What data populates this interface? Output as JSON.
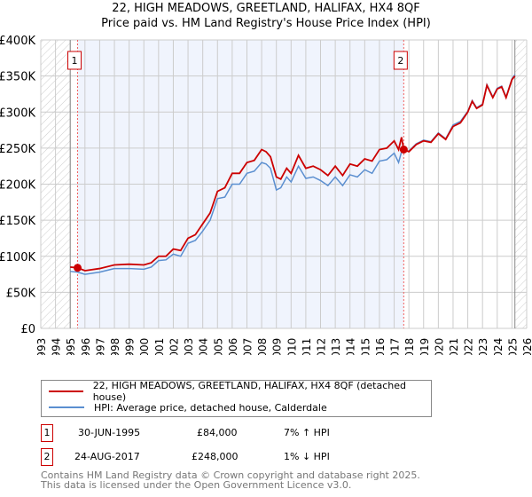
{
  "title": "22, HIGH MEADOWS, GREETLAND, HALIFAX, HX4 8QF",
  "subtitle": "Price paid vs. HM Land Registry's House Price Index (HPI)",
  "chart_data": {
    "type": "line",
    "title": "22, HIGH MEADOWS, GREETLAND, HALIFAX, HX4 8QF",
    "subtitle": "Price paid vs. HM Land Registry's House Price Index (HPI)",
    "xlim": [
      1993,
      2026
    ],
    "ylim": [
      0,
      400000
    ],
    "grid": true,
    "x_ticks": [
      "1993",
      "1994",
      "1995",
      "1996",
      "1997",
      "1998",
      "1999",
      "2000",
      "2001",
      "2002",
      "2003",
      "2004",
      "2005",
      "2006",
      "2007",
      "2008",
      "2009",
      "2010",
      "2011",
      "2012",
      "2013",
      "2014",
      "2015",
      "2016",
      "2017",
      "2018",
      "2019",
      "2020",
      "2021",
      "2022",
      "2023",
      "2024",
      "2025",
      "2026"
    ],
    "y_ticks": [
      {
        "v": 0,
        "label": "£0"
      },
      {
        "v": 50000,
        "label": "£50K"
      },
      {
        "v": 100000,
        "label": "£100K"
      },
      {
        "v": 150000,
        "label": "£150K"
      },
      {
        "v": 200000,
        "label": "£200K"
      },
      {
        "v": 250000,
        "label": "£250K"
      },
      {
        "v": 300000,
        "label": "£300K"
      },
      {
        "v": 350000,
        "label": "£350K"
      },
      {
        "v": 400000,
        "label": "£400K"
      }
    ],
    "x": [
      1995.0,
      1995.5,
      1996,
      1997,
      1998,
      1999,
      2000,
      2000.5,
      2001,
      2001.5,
      2002,
      2002.5,
      2003,
      2003.5,
      2004,
      2004.5,
      2005,
      2005.5,
      2006,
      2006.5,
      2007,
      2007.5,
      2008,
      2008.3,
      2008.6,
      2009,
      2009.3,
      2009.7,
      2010,
      2010.5,
      2011,
      2011.5,
      2012,
      2012.5,
      2013,
      2013.5,
      2014,
      2014.5,
      2015,
      2015.5,
      2016,
      2016.5,
      2017,
      2017.3,
      2017.5,
      2017.65,
      2018,
      2018.5,
      2019,
      2019.5,
      2020,
      2020.5,
      2021,
      2021.5,
      2022,
      2022.3,
      2022.6,
      2023,
      2023.3,
      2023.7,
      2024,
      2024.3,
      2024.6,
      2025,
      2025.2
    ],
    "series": [
      {
        "name": "22, HIGH MEADOWS, GREETLAND, HALIFAX, HX4 8QF (detached house)",
        "color": "#cc0000",
        "values": [
          85000,
          84000,
          80000,
          83000,
          88000,
          89000,
          88000,
          91000,
          100000,
          100000,
          110000,
          108000,
          125000,
          130000,
          145000,
          160000,
          190000,
          195000,
          215000,
          215000,
          230000,
          233000,
          248000,
          245000,
          238000,
          210000,
          207000,
          222000,
          215000,
          240000,
          222000,
          225000,
          220000,
          212000,
          225000,
          212000,
          228000,
          225000,
          235000,
          232000,
          248000,
          250000,
          260000,
          248000,
          265000,
          248000,
          245000,
          255000,
          260000,
          258000,
          270000,
          262000,
          280000,
          285000,
          300000,
          315000,
          305000,
          310000,
          337000,
          320000,
          332000,
          335000,
          320000,
          345000,
          350000
        ]
      },
      {
        "name": "HPI: Average price, detached house, Calderdale",
        "color": "#5b8fd0",
        "values": [
          79000,
          78000,
          75000,
          78000,
          83000,
          83000,
          82000,
          85000,
          94000,
          95000,
          103000,
          100000,
          118000,
          122000,
          135000,
          150000,
          180000,
          182000,
          200000,
          200000,
          215000,
          218000,
          230000,
          228000,
          222000,
          192000,
          195000,
          210000,
          203000,
          225000,
          208000,
          210000,
          205000,
          198000,
          210000,
          198000,
          213000,
          210000,
          220000,
          215000,
          232000,
          234000,
          243000,
          230000,
          245000,
          246000,
          246000,
          256000,
          261000,
          259000,
          271000,
          263000,
          282000,
          287000,
          301000,
          316000,
          306000,
          311000,
          338000,
          321000,
          333000,
          336000,
          321000,
          346000,
          352000
        ]
      }
    ],
    "sales": [
      {
        "id": "1",
        "x": 1995.5,
        "value": 84000
      },
      {
        "id": "2",
        "x": 2017.65,
        "value": 248000
      }
    ],
    "data_end": 2025.2,
    "legend_placement": "bottom"
  },
  "legend": [
    {
      "label": "22, HIGH MEADOWS, GREETLAND, HALIFAX, HX4 8QF (detached house)",
      "color": "#cc0000"
    },
    {
      "label": "HPI: Average price, detached house, Calderdale",
      "color": "#5b8fd0"
    }
  ],
  "transactions": [
    {
      "num": "1",
      "date": "30-JUN-1995",
      "price": "£84,000",
      "hpi": "7% ↑ HPI"
    },
    {
      "num": "2",
      "date": "24-AUG-2017",
      "price": "£248,000",
      "hpi": "1% ↓ HPI"
    }
  ],
  "footer": [
    "Contains HM Land Registry data © Crown copyright and database right 2025.",
    "This data is licensed under the Open Government Licence v3.0."
  ]
}
